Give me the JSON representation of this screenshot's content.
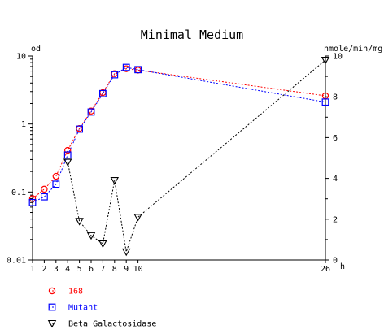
{
  "chart_data": {
    "type": "line",
    "title": "Minimal Medium",
    "left_axis_unit": "od",
    "right_axis_unit": "nmole/min/mg",
    "x_unit": "h",
    "x_ticks": [
      1,
      2,
      3,
      4,
      5,
      6,
      7,
      8,
      9,
      10,
      26
    ],
    "x_scale": "linear",
    "x_range": [
      1,
      26
    ],
    "y_left_scale": "log",
    "y_left_range": [
      0.01,
      10
    ],
    "y_left_ticks": [
      "10",
      "1",
      "0.1",
      "0.01"
    ],
    "y_right_scale": "linear",
    "y_right_range": [
      0,
      10
    ],
    "y_right_ticks": [
      "10",
      "8",
      "6",
      "4",
      "2",
      "0"
    ],
    "grid": false,
    "legend_position": "bottom-left",
    "series": [
      {
        "name": "168",
        "axis": "left",
        "color": "#ff0000",
        "marker": "circle",
        "x": [
          1,
          2,
          3,
          4,
          5,
          6,
          7,
          8,
          9,
          10,
          26
        ],
        "y": [
          0.08,
          0.11,
          0.17,
          0.41,
          0.86,
          1.55,
          2.9,
          5.5,
          6.5,
          6.2,
          2.6
        ]
      },
      {
        "name": "Mutant",
        "axis": "left",
        "color": "#0000ff",
        "marker": "square",
        "x": [
          1,
          2,
          3,
          4,
          5,
          6,
          7,
          8,
          9,
          10,
          26
        ],
        "y": [
          0.07,
          0.085,
          0.13,
          0.35,
          0.84,
          1.5,
          2.8,
          5.3,
          6.8,
          6.3,
          2.1
        ]
      },
      {
        "name": "Beta Galactosidase",
        "axis": "right",
        "color": "#000000",
        "marker": "triangle-down",
        "x": [
          4,
          5,
          6,
          7,
          8,
          9,
          10,
          26
        ],
        "y": [
          4.8,
          1.9,
          1.2,
          0.8,
          3.9,
          0.4,
          2.1,
          9.8
        ]
      }
    ]
  }
}
